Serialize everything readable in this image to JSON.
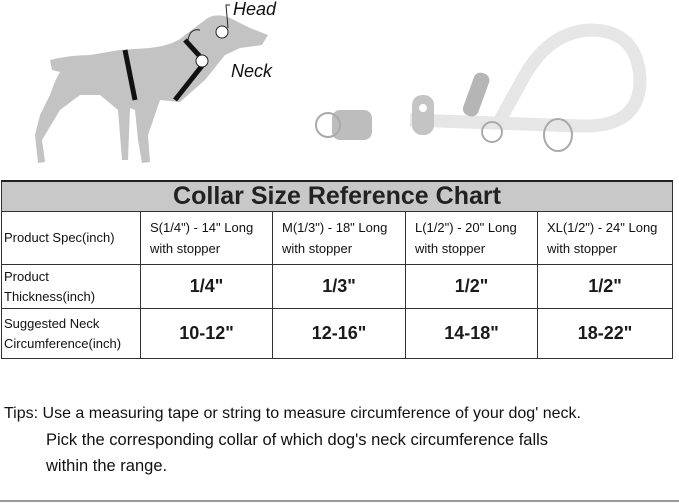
{
  "diagram": {
    "head_label": "Head",
    "neck_label": "Neck",
    "dog_color": "#c3c3c3",
    "harness_color": "#111111"
  },
  "chart": {
    "title": "Collar Size Reference Chart",
    "rows": [
      {
        "header": "Product Spec(inch)",
        "cells": [
          [
            "S(1/4\") - 14\" Long",
            "with stopper"
          ],
          [
            "M(1/3\") - 18\" Long",
            "with stopper"
          ],
          [
            "L(1/2\") - 20\" Long",
            "with stopper"
          ],
          [
            "XL(1/2\") - 24\" Long",
            "with stopper"
          ]
        ]
      },
      {
        "header": [
          "Product",
          "Thickness(inch)"
        ],
        "cells": [
          "1/4\"",
          "1/3\"",
          "1/2\"",
          "1/2\""
        ]
      },
      {
        "header": [
          "Suggested  Neck",
          "Circumference(inch)"
        ],
        "cells": [
          "10-12\"",
          "12-16\"",
          "14-18\"",
          "18-22\""
        ]
      }
    ]
  },
  "tips": {
    "line1": "Tips: Use a measuring tape or string to measure circumference of your dog' neck.",
    "line2": "Pick the corresponding collar of which dog's neck circumference falls",
    "line3": "within the range."
  }
}
